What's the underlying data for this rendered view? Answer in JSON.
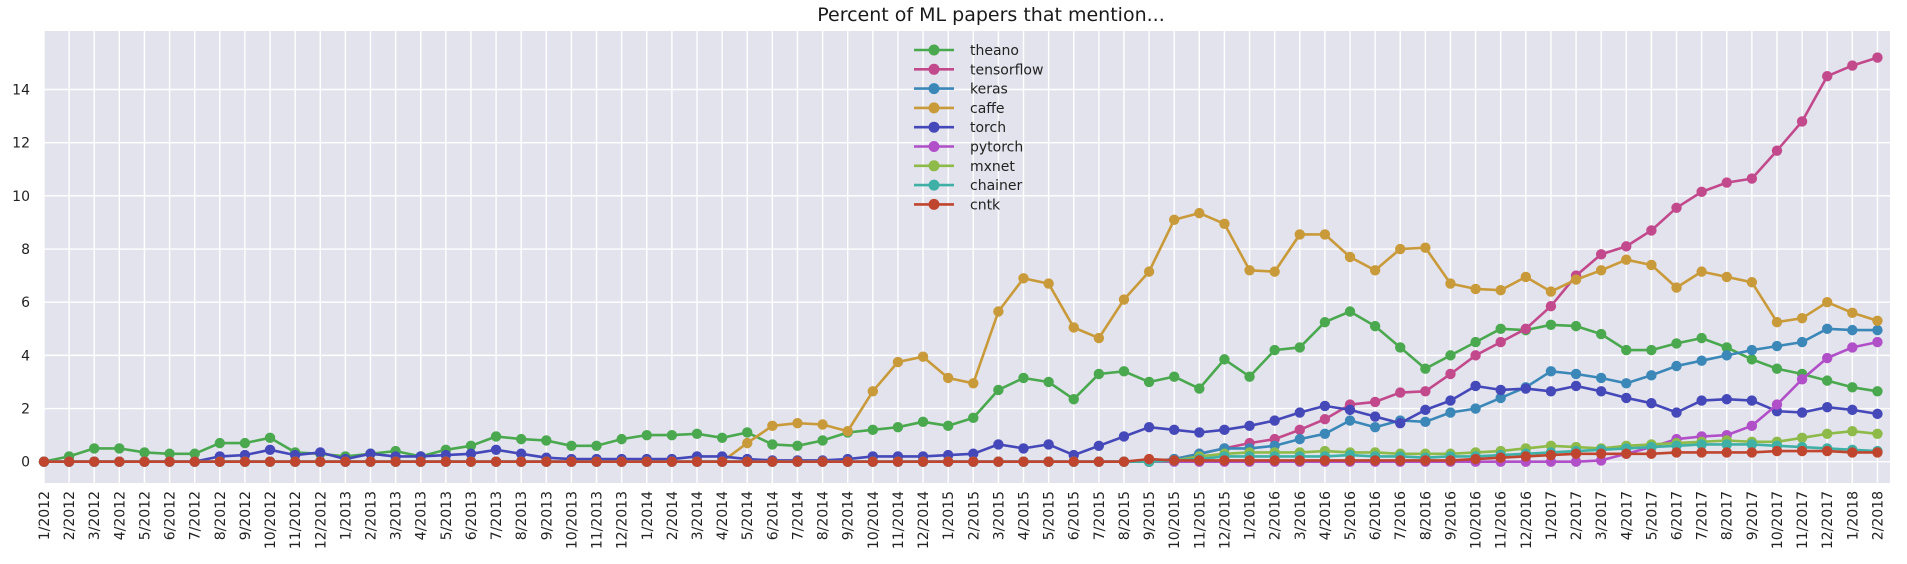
{
  "chart_data": {
    "type": "line",
    "title": "Percent of ML papers that mention...",
    "xlabel": "",
    "ylabel": "",
    "ylim": [
      -0.8,
      16.2
    ],
    "yticks": [
      0,
      2,
      4,
      6,
      8,
      10,
      12,
      14
    ],
    "grid": true,
    "legend_position": "top-center",
    "background_color": "#e3e3ed",
    "categories": [
      "1/2012",
      "2/2012",
      "3/2012",
      "4/2012",
      "5/2012",
      "6/2012",
      "7/2012",
      "8/2012",
      "9/2012",
      "10/2012",
      "11/2012",
      "12/2012",
      "1/2013",
      "2/2013",
      "3/2013",
      "4/2013",
      "5/2013",
      "6/2013",
      "7/2013",
      "8/2013",
      "9/2013",
      "10/2013",
      "11/2013",
      "12/2013",
      "1/2014",
      "2/2014",
      "3/2014",
      "4/2014",
      "5/2014",
      "6/2014",
      "7/2014",
      "8/2014",
      "9/2014",
      "10/2014",
      "11/2014",
      "12/2014",
      "1/2015",
      "2/2015",
      "3/2015",
      "4/2015",
      "5/2015",
      "6/2015",
      "7/2015",
      "8/2015",
      "9/2015",
      "10/2015",
      "11/2015",
      "12/2015",
      "1/2016",
      "2/2016",
      "3/2016",
      "4/2016",
      "5/2016",
      "6/2016",
      "7/2016",
      "8/2016",
      "9/2016",
      "10/2016",
      "11/2016",
      "12/2016",
      "1/2017",
      "2/2017",
      "3/2017",
      "4/2017",
      "5/2017",
      "6/2017",
      "7/2017",
      "8/2017",
      "9/2017",
      "10/2017",
      "11/2017",
      "12/2017",
      "1/2018",
      "2/2018"
    ],
    "series": [
      {
        "name": "theano",
        "color": "#4aa84f",
        "values": [
          0,
          0.2,
          0.5,
          0.5,
          0.35,
          0.3,
          0.3,
          0.7,
          0.7,
          0.9,
          0.35,
          0.3,
          0.2,
          0.3,
          0.4,
          0.2,
          0.45,
          0.6,
          0.95,
          0.85,
          0.8,
          0.6,
          0.6,
          0.85,
          1.0,
          1.0,
          1.05,
          0.9,
          1.1,
          0.65,
          0.6,
          0.8,
          1.1,
          1.2,
          1.3,
          1.5,
          1.35,
          1.65,
          2.7,
          3.15,
          3.0,
          2.35,
          3.3,
          3.4,
          3.0,
          3.2,
          2.75,
          3.85,
          3.2,
          4.2,
          4.3,
          5.25,
          5.65,
          5.1,
          4.3,
          3.5,
          4.0,
          4.5,
          5.0,
          4.95,
          5.15,
          5.1,
          4.8,
          4.2,
          4.2,
          4.45,
          4.65,
          4.3,
          3.85,
          3.5,
          3.3,
          3.05,
          2.8,
          2.65
        ]
      },
      {
        "name": "tensorflow",
        "color": "#c2498c",
        "values": [
          0,
          0,
          0,
          0,
          0,
          0,
          0,
          0,
          0,
          0,
          0,
          0,
          0,
          0,
          0,
          0,
          0,
          0,
          0,
          0,
          0,
          0,
          0,
          0,
          0,
          0,
          0,
          0,
          0,
          0,
          0,
          0,
          0,
          0,
          0,
          0,
          0,
          0,
          0,
          0,
          0,
          0,
          0,
          0,
          0,
          0.1,
          0.3,
          0.5,
          0.7,
          0.85,
          1.2,
          1.6,
          2.15,
          2.25,
          2.6,
          2.65,
          3.3,
          4.0,
          4.5,
          5.0,
          5.85,
          7.0,
          7.8,
          8.1,
          8.7,
          9.55,
          10.15,
          10.5,
          10.65,
          11.7,
          12.8,
          14.5,
          14.9,
          15.2
        ]
      },
      {
        "name": "keras",
        "color": "#3a87b8",
        "values": [
          0,
          0,
          0,
          0,
          0,
          0,
          0,
          0,
          0,
          0,
          0,
          0,
          0,
          0,
          0,
          0,
          0,
          0,
          0,
          0,
          0,
          0,
          0,
          0,
          0,
          0,
          0,
          0,
          0,
          0,
          0,
          0,
          0,
          0,
          0,
          0,
          0,
          0,
          0,
          0,
          0,
          0,
          0,
          0,
          0,
          0.1,
          0.3,
          0.5,
          0.5,
          0.6,
          0.85,
          1.05,
          1.55,
          1.3,
          1.55,
          1.5,
          1.85,
          2.0,
          2.4,
          2.8,
          3.4,
          3.3,
          3.15,
          2.95,
          3.25,
          3.6,
          3.8,
          4.0,
          4.2,
          4.35,
          4.5,
          5.0,
          4.95,
          4.95
        ]
      },
      {
        "name": "caffe",
        "color": "#c99a3a",
        "values": [
          0,
          0,
          0,
          0,
          0,
          0,
          0,
          0,
          0,
          0,
          0,
          0,
          0,
          0,
          0,
          0,
          0,
          0,
          0,
          0,
          0,
          0,
          0,
          0,
          0,
          0,
          0,
          0,
          0.7,
          1.35,
          1.45,
          1.4,
          1.15,
          2.65,
          3.75,
          3.95,
          3.15,
          2.95,
          5.65,
          6.9,
          6.7,
          5.05,
          4.65,
          6.1,
          7.15,
          9.1,
          9.35,
          8.95,
          7.2,
          7.15,
          8.55,
          8.55,
          7.7,
          7.2,
          8.0,
          8.05,
          6.7,
          6.5,
          6.45,
          6.95,
          6.4,
          6.85,
          7.2,
          7.6,
          7.4,
          6.55,
          7.15,
          6.95,
          6.75,
          5.25,
          5.4,
          6.0,
          5.6,
          5.3
        ]
      },
      {
        "name": "torch",
        "color": "#4548b8",
        "values": [
          0,
          0,
          0,
          0,
          0,
          0,
          0,
          0.2,
          0.25,
          0.45,
          0.25,
          0.35,
          0.1,
          0.3,
          0.2,
          0.2,
          0.25,
          0.3,
          0.45,
          0.3,
          0.15,
          0.1,
          0.1,
          0.1,
          0.1,
          0.1,
          0.2,
          0.2,
          0.1,
          0.05,
          0.05,
          0.05,
          0.1,
          0.2,
          0.2,
          0.2,
          0.25,
          0.3,
          0.65,
          0.5,
          0.65,
          0.25,
          0.6,
          0.95,
          1.3,
          1.2,
          1.1,
          1.2,
          1.35,
          1.55,
          1.85,
          2.1,
          1.95,
          1.7,
          1.45,
          1.95,
          2.3,
          2.85,
          2.7,
          2.75,
          2.65,
          2.85,
          2.65,
          2.4,
          2.2,
          1.85,
          2.3,
          2.35,
          2.3,
          1.9,
          1.85,
          2.05,
          1.95,
          1.8
        ]
      },
      {
        "name": "pytorch",
        "color": "#b04fc8",
        "values": [
          0,
          0,
          0,
          0,
          0,
          0,
          0,
          0,
          0,
          0,
          0,
          0,
          0,
          0,
          0,
          0,
          0,
          0,
          0,
          0,
          0,
          0,
          0,
          0,
          0,
          0,
          0,
          0,
          0,
          0,
          0,
          0,
          0,
          0,
          0,
          0,
          0,
          0,
          0,
          0,
          0,
          0,
          0,
          0,
          0,
          0,
          0,
          0,
          0,
          0,
          0,
          0,
          0,
          0,
          0,
          0,
          0,
          0,
          0,
          0,
          0,
          0,
          0.05,
          0.3,
          0.55,
          0.85,
          0.95,
          1.0,
          1.35,
          2.15,
          3.1,
          3.9,
          4.3,
          4.5
        ]
      },
      {
        "name": "mxnet",
        "color": "#8dba49",
        "values": [
          0,
          0,
          0,
          0,
          0,
          0,
          0,
          0,
          0,
          0,
          0,
          0,
          0,
          0,
          0,
          0,
          0,
          0,
          0,
          0,
          0,
          0,
          0,
          0,
          0,
          0,
          0,
          0,
          0,
          0,
          0,
          0,
          0,
          0,
          0,
          0,
          0,
          0,
          0,
          0,
          0,
          0,
          0,
          0,
          0,
          0.05,
          0.2,
          0.3,
          0.35,
          0.35,
          0.35,
          0.4,
          0.35,
          0.35,
          0.3,
          0.3,
          0.3,
          0.35,
          0.4,
          0.5,
          0.6,
          0.55,
          0.5,
          0.6,
          0.65,
          0.7,
          0.75,
          0.8,
          0.75,
          0.75,
          0.9,
          1.05,
          1.15,
          1.05
        ]
      },
      {
        "name": "chainer",
        "color": "#3fb0a6",
        "values": [
          0,
          0,
          0,
          0,
          0,
          0,
          0,
          0,
          0,
          0,
          0,
          0,
          0,
          0,
          0,
          0,
          0,
          0,
          0,
          0,
          0,
          0,
          0,
          0,
          0,
          0,
          0,
          0,
          0,
          0,
          0,
          0,
          0,
          0,
          0,
          0,
          0,
          0,
          0,
          0,
          0,
          0,
          0,
          0,
          0,
          0.05,
          0.1,
          0.2,
          0.2,
          0.2,
          0.2,
          0.2,
          0.25,
          0.2,
          0.2,
          0.15,
          0.2,
          0.2,
          0.25,
          0.3,
          0.35,
          0.4,
          0.45,
          0.5,
          0.55,
          0.6,
          0.65,
          0.65,
          0.65,
          0.6,
          0.55,
          0.5,
          0.45,
          0.4
        ]
      },
      {
        "name": "cntk",
        "color": "#c0452f",
        "values": [
          0,
          0,
          0,
          0,
          0,
          0,
          0,
          0,
          0,
          0,
          0,
          0,
          0,
          0,
          0,
          0,
          0,
          0,
          0,
          0,
          0,
          0,
          0,
          0,
          0,
          0,
          0,
          0,
          0,
          0,
          0,
          0,
          0,
          0,
          0,
          0,
          0,
          0,
          0,
          0,
          0,
          0,
          0,
          0,
          0.1,
          0.05,
          0.05,
          0.05,
          0.05,
          0.05,
          0.05,
          0.05,
          0.05,
          0.05,
          0.05,
          0.05,
          0.05,
          0.1,
          0.15,
          0.2,
          0.25,
          0.3,
          0.3,
          0.3,
          0.3,
          0.35,
          0.35,
          0.35,
          0.35,
          0.4,
          0.4,
          0.4,
          0.35,
          0.35
        ]
      }
    ]
  }
}
